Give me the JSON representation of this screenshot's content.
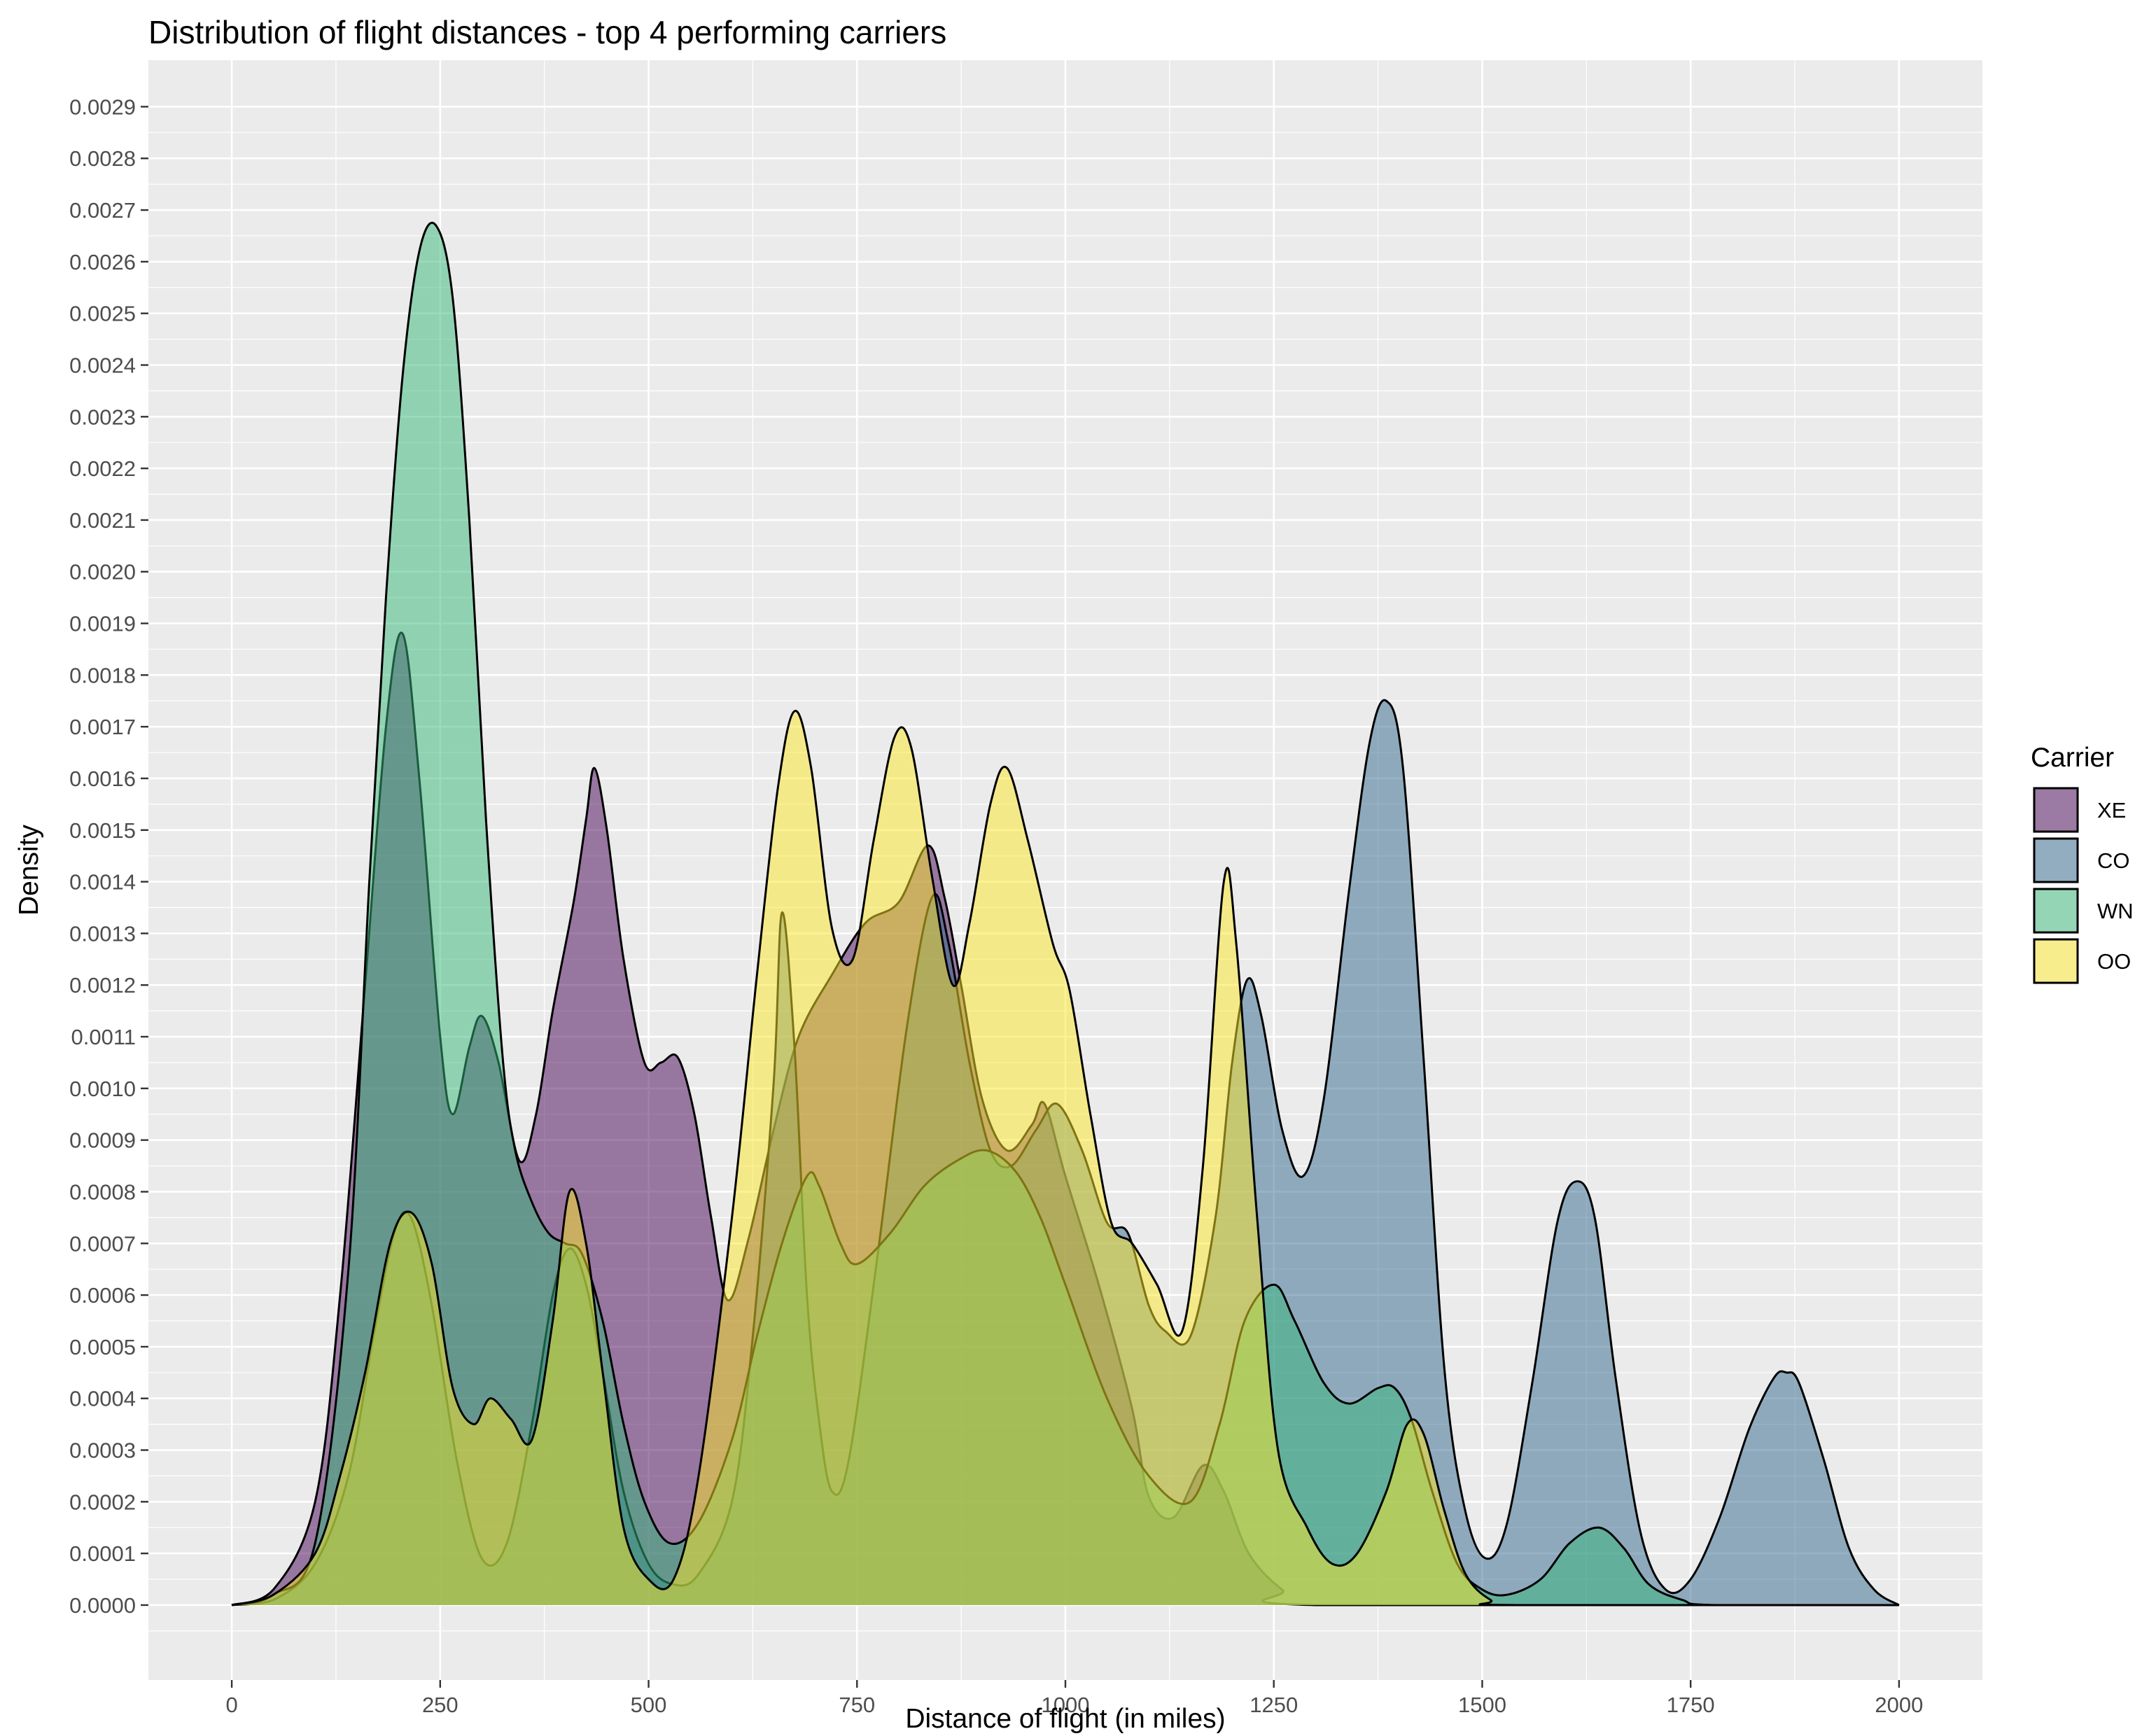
{
  "chart_data": {
    "type": "area",
    "subtype": "density",
    "title": "Distribution of flight distances - top 4 performing carriers",
    "xlabel": "Distance of flight (in miles)",
    "ylabel": "Density",
    "xlim": [
      -100,
      2100
    ],
    "ylim": [
      -0.000145,
      0.00299
    ],
    "x_ticks": [
      0,
      250,
      500,
      750,
      1000,
      1250,
      1500,
      1750,
      2000
    ],
    "x_tick_labels": [
      "0",
      "250",
      "500",
      "750",
      "1000",
      "1250",
      "1500",
      "1750",
      "2000"
    ],
    "y_ticks": [
      0.0,
      0.0001,
      0.0002,
      0.0003,
      0.0004,
      0.0005,
      0.0006,
      0.0007,
      0.0008,
      0.0009,
      0.001,
      0.0011,
      0.0012,
      0.0013,
      0.0014,
      0.0015,
      0.0016,
      0.0017,
      0.0018,
      0.0019,
      0.002,
      0.0021,
      0.0022,
      0.0023,
      0.0024,
      0.0025,
      0.0026,
      0.0027,
      0.0028,
      0.0029
    ],
    "y_tick_labels": [
      "0.0000",
      "0.0001",
      "0.0002",
      "0.0003",
      "0.0004",
      "0.0005",
      "0.0006",
      "0.0007",
      "0.0008",
      "0.0009",
      "0.0010",
      "0.0011",
      "0.0012",
      "0.0013",
      "0.0014",
      "0.0015",
      "0.0016",
      "0.0017",
      "0.0018",
      "0.0019",
      "0.0020",
      "0.0021",
      "0.0022",
      "0.0023",
      "0.0024",
      "0.0025",
      "0.0026",
      "0.0027",
      "0.0028",
      "0.0029"
    ],
    "grid": true,
    "legend": {
      "title": "Carrier",
      "position": "right"
    },
    "series": [
      {
        "name": "XE",
        "color": "#440154",
        "points": [
          [
            0,
            0
          ],
          [
            50,
            3e-05
          ],
          [
            100,
            0.0002
          ],
          [
            130,
            0.0006
          ],
          [
            160,
            0.0012
          ],
          [
            185,
            0.0017
          ],
          [
            205,
            0.00188
          ],
          [
            225,
            0.0016
          ],
          [
            250,
            0.0011
          ],
          [
            265,
            0.00095
          ],
          [
            285,
            0.00108
          ],
          [
            300,
            0.00114
          ],
          [
            320,
            0.00105
          ],
          [
            345,
            0.00086
          ],
          [
            365,
            0.00095
          ],
          [
            385,
            0.00115
          ],
          [
            410,
            0.00136
          ],
          [
            425,
            0.00152
          ],
          [
            435,
            0.00162
          ],
          [
            450,
            0.0015
          ],
          [
            470,
            0.00125
          ],
          [
            495,
            0.00105
          ],
          [
            515,
            0.00105
          ],
          [
            535,
            0.00106
          ],
          [
            555,
            0.00095
          ],
          [
            575,
            0.00075
          ],
          [
            595,
            0.00059
          ],
          [
            620,
            0.00071
          ],
          [
            650,
            0.00092
          ],
          [
            680,
            0.0011
          ],
          [
            720,
            0.00122
          ],
          [
            760,
            0.00132
          ],
          [
            800,
            0.00136
          ],
          [
            835,
            0.00147
          ],
          [
            855,
            0.00137
          ],
          [
            875,
            0.0012
          ],
          [
            900,
            0.00098
          ],
          [
            930,
            0.00088
          ],
          [
            960,
            0.00093
          ],
          [
            975,
            0.00097
          ],
          [
            1000,
            0.00083
          ],
          [
            1040,
            0.00062
          ],
          [
            1080,
            0.00038
          ],
          [
            1100,
            0.00021
          ],
          [
            1130,
            0.00017
          ],
          [
            1165,
            0.00027
          ],
          [
            1190,
            0.00022
          ],
          [
            1220,
            0.0001
          ],
          [
            1260,
            3e-05
          ],
          [
            1300,
            0
          ],
          [
            2000,
            0
          ]
        ]
      },
      {
        "name": "CO",
        "color": "#31688e",
        "points": [
          [
            0,
            0
          ],
          [
            50,
            1e-05
          ],
          [
            100,
            8e-05
          ],
          [
            140,
            0.00025
          ],
          [
            170,
            0.00052
          ],
          [
            195,
            0.00072
          ],
          [
            215,
            0.00075
          ],
          [
            240,
            0.00058
          ],
          [
            270,
            0.00028
          ],
          [
            300,
            9e-05
          ],
          [
            330,
            0.00012
          ],
          [
            360,
            0.00035
          ],
          [
            385,
            0.0006
          ],
          [
            405,
            0.00069
          ],
          [
            425,
            0.00062
          ],
          [
            445,
            0.00045
          ],
          [
            470,
            0.00022
          ],
          [
            500,
            8e-05
          ],
          [
            530,
            4e-05
          ],
          [
            560,
            6e-05
          ],
          [
            600,
            0.0002
          ],
          [
            625,
            0.00052
          ],
          [
            650,
            0.00101
          ],
          [
            660,
            0.00134
          ],
          [
            675,
            0.00108
          ],
          [
            690,
            0.0006
          ],
          [
            705,
            0.00035
          ],
          [
            720,
            0.00022
          ],
          [
            740,
            0.00028
          ],
          [
            775,
            0.00068
          ],
          [
            810,
            0.00112
          ],
          [
            840,
            0.00137
          ],
          [
            860,
            0.00128
          ],
          [
            885,
            0.00105
          ],
          [
            910,
            0.00088
          ],
          [
            935,
            0.00085
          ],
          [
            965,
            0.00092
          ],
          [
            990,
            0.00097
          ],
          [
            1020,
            0.00088
          ],
          [
            1050,
            0.00074
          ],
          [
            1075,
            0.00072
          ],
          [
            1100,
            0.00058
          ],
          [
            1120,
            0.00053
          ],
          [
            1150,
            0.00052
          ],
          [
            1180,
            0.00075
          ],
          [
            1200,
            0.00105
          ],
          [
            1218,
            0.00121
          ],
          [
            1235,
            0.00114
          ],
          [
            1260,
            0.00092
          ],
          [
            1285,
            0.00083
          ],
          [
            1310,
            0.00098
          ],
          [
            1340,
            0.00138
          ],
          [
            1365,
            0.00167
          ],
          [
            1385,
            0.00175
          ],
          [
            1405,
            0.00162
          ],
          [
            1430,
            0.00105
          ],
          [
            1455,
            0.00045
          ],
          [
            1480,
            0.00018
          ],
          [
            1505,
            9e-05
          ],
          [
            1530,
            0.00016
          ],
          [
            1560,
            0.00043
          ],
          [
            1590,
            0.00074
          ],
          [
            1613,
            0.00082
          ],
          [
            1635,
            0.00075
          ],
          [
            1660,
            0.00044
          ],
          [
            1690,
            0.00014
          ],
          [
            1720,
            3e-05
          ],
          [
            1750,
            5e-05
          ],
          [
            1785,
            0.00017
          ],
          [
            1820,
            0.00034
          ],
          [
            1850,
            0.00044
          ],
          [
            1865,
            0.00045
          ],
          [
            1880,
            0.00043
          ],
          [
            1910,
            0.00028
          ],
          [
            1940,
            0.00011
          ],
          [
            1970,
            3e-05
          ],
          [
            2000,
            0
          ]
        ]
      },
      {
        "name": "WN",
        "color": "#35b779",
        "points": [
          [
            0,
            0
          ],
          [
            50,
            2e-05
          ],
          [
            100,
            0.00012
          ],
          [
            140,
            0.00065
          ],
          [
            165,
            0.0014
          ],
          [
            185,
            0.00195
          ],
          [
            205,
            0.00238
          ],
          [
            225,
            0.00262
          ],
          [
            245,
            0.00267
          ],
          [
            265,
            0.00253
          ],
          [
            285,
            0.0021
          ],
          [
            305,
            0.00152
          ],
          [
            325,
            0.00106
          ],
          [
            340,
            0.00088
          ],
          [
            360,
            0.00078
          ],
          [
            380,
            0.00072
          ],
          [
            400,
            0.0007
          ],
          [
            420,
            0.00068
          ],
          [
            445,
            0.00055
          ],
          [
            470,
            0.00035
          ],
          [
            495,
            0.0002
          ],
          [
            525,
            0.00012
          ],
          [
            560,
            0.00016
          ],
          [
            600,
            0.00032
          ],
          [
            630,
            0.00052
          ],
          [
            660,
            0.0007
          ],
          [
            690,
            0.00083
          ],
          [
            705,
            0.00081
          ],
          [
            730,
            0.0007
          ],
          [
            750,
            0.00066
          ],
          [
            790,
            0.00072
          ],
          [
            830,
            0.00081
          ],
          [
            870,
            0.00086
          ],
          [
            905,
            0.00088
          ],
          [
            940,
            0.00084
          ],
          [
            970,
            0.00075
          ],
          [
            1000,
            0.00062
          ],
          [
            1050,
            0.0004
          ],
          [
            1100,
            0.00025
          ],
          [
            1150,
            0.0002
          ],
          [
            1185,
            0.00035
          ],
          [
            1215,
            0.00055
          ],
          [
            1250,
            0.00062
          ],
          [
            1275,
            0.00055
          ],
          [
            1310,
            0.00043
          ],
          [
            1340,
            0.00039
          ],
          [
            1375,
            0.00042
          ],
          [
            1395,
            0.00042
          ],
          [
            1415,
            0.00036
          ],
          [
            1440,
            0.00022
          ],
          [
            1470,
            8e-05
          ],
          [
            1500,
            3e-05
          ],
          [
            1530,
            2e-05
          ],
          [
            1570,
            5e-05
          ],
          [
            1605,
            0.00012
          ],
          [
            1640,
            0.00015
          ],
          [
            1670,
            0.00011
          ],
          [
            1700,
            4e-05
          ],
          [
            1740,
            1e-05
          ],
          [
            1780,
            0
          ],
          [
            2000,
            0
          ]
        ]
      },
      {
        "name": "OO",
        "color": "#fde725",
        "points": [
          [
            0,
            0
          ],
          [
            50,
            2e-05
          ],
          [
            100,
            0.0001
          ],
          [
            130,
            0.00025
          ],
          [
            160,
            0.00045
          ],
          [
            190,
            0.0007
          ],
          [
            215,
            0.00076
          ],
          [
            240,
            0.00066
          ],
          [
            265,
            0.00042
          ],
          [
            290,
            0.00035
          ],
          [
            310,
            0.0004
          ],
          [
            335,
            0.00036
          ],
          [
            360,
            0.00032
          ],
          [
            385,
            0.00055
          ],
          [
            405,
            0.0008
          ],
          [
            425,
            0.0007
          ],
          [
            445,
            0.00045
          ],
          [
            470,
            0.00015
          ],
          [
            500,
            5e-05
          ],
          [
            530,
            5e-05
          ],
          [
            560,
            0.00025
          ],
          [
            600,
            0.00075
          ],
          [
            630,
            0.00122
          ],
          [
            655,
            0.00158
          ],
          [
            675,
            0.00173
          ],
          [
            695,
            0.00162
          ],
          [
            720,
            0.00131
          ],
          [
            745,
            0.00125
          ],
          [
            770,
            0.00148
          ],
          [
            795,
            0.00168
          ],
          [
            815,
            0.00166
          ],
          [
            840,
            0.00141
          ],
          [
            865,
            0.0012
          ],
          [
            885,
            0.00132
          ],
          [
            910,
            0.00155
          ],
          [
            930,
            0.00162
          ],
          [
            955,
            0.00148
          ],
          [
            985,
            0.00128
          ],
          [
            1005,
            0.00119
          ],
          [
            1030,
            0.00095
          ],
          [
            1055,
            0.00074
          ],
          [
            1080,
            0.0007
          ],
          [
            1110,
            0.00062
          ],
          [
            1140,
            0.00053
          ],
          [
            1165,
            0.00085
          ],
          [
            1190,
            0.0014
          ],
          [
            1205,
            0.00128
          ],
          [
            1230,
            0.00075
          ],
          [
            1255,
            0.0003
          ],
          [
            1290,
            0.00015
          ],
          [
            1320,
            8e-05
          ],
          [
            1350,
            0.0001
          ],
          [
            1385,
            0.00022
          ],
          [
            1410,
            0.00035
          ],
          [
            1430,
            0.00033
          ],
          [
            1455,
            0.00018
          ],
          [
            1480,
            6e-05
          ],
          [
            1510,
            1e-05
          ],
          [
            1540,
            0
          ],
          [
            2000,
            0
          ]
        ]
      }
    ]
  }
}
